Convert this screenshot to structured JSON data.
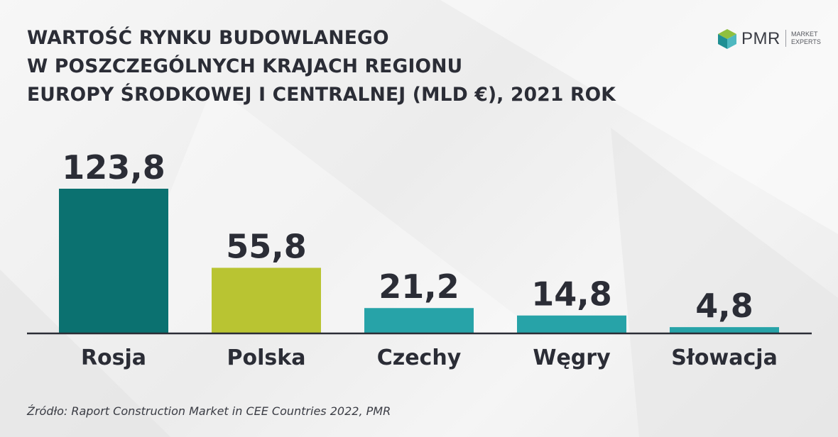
{
  "title_lines": [
    "WARTOŚĆ RYNKU BUDOWLANEGO",
    "W POSZCZEGÓLNYCH KRAJACH REGIONU",
    "EUROPY ŚRODKOWEJ I CENTRALNEJ (MLD €), 2021 ROK"
  ],
  "logo": {
    "name": "PMR",
    "tagline_line1": "MARKET",
    "tagline_line2": "EXPERTS",
    "icon": "cube-logo-icon"
  },
  "source": "Źródło: Raport Construction Market in CEE Countries 2022, PMR",
  "chart_data": {
    "type": "bar",
    "categories": [
      "Rosja",
      "Polska",
      "Czechy",
      "Węgry",
      "Słowacja"
    ],
    "values": [
      123.8,
      55.8,
      21.2,
      14.8,
      4.8
    ],
    "data_labels": [
      "123,8",
      "55,8",
      "21,2",
      "14,8",
      "4,8"
    ],
    "colors": [
      "#0b7170",
      "#b9c432",
      "#27a3a8",
      "#27a3a8",
      "#27a3a8"
    ],
    "ylim": [
      0,
      123.8
    ],
    "grid": false,
    "legend": "none",
    "axis_color": "#2b2d36"
  }
}
